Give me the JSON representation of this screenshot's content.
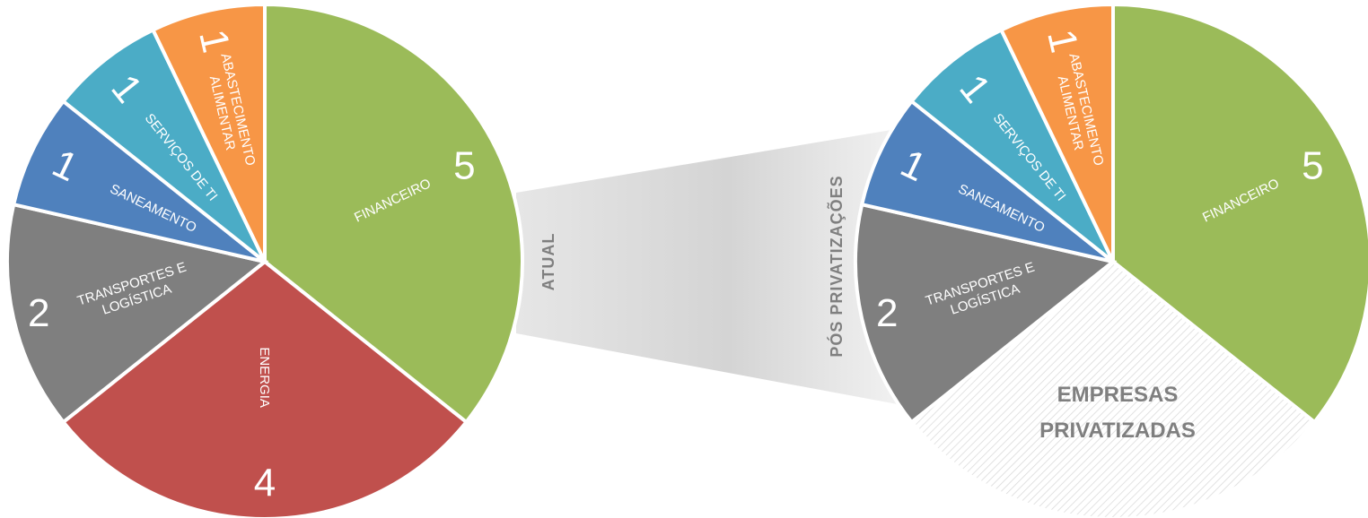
{
  "colors": {
    "financeiro": "#9bbb59",
    "energia": "#c0504d",
    "transportes": "#7f7f7f",
    "saneamento": "#4f81bd",
    "servicos_ti": "#4bacc6",
    "abastecimento": "#f79646",
    "privatizadas_hatch": "#d9d9d9",
    "band": "#d9d9d9",
    "band_label": "#7f7f7f"
  },
  "band": {
    "left_label": "ATUAL",
    "right_label": "PÓS PRIVATIZAÇÕES"
  },
  "privatized_label": {
    "line1": "EMPRESAS",
    "line2": "PRIVATIZADAS"
  },
  "chart_data": [
    {
      "type": "pie",
      "name_shown": "ATUAL",
      "slices": [
        {
          "key": "financeiro",
          "label": [
            "FINANCEIRO"
          ],
          "value": 5,
          "value_label": "5"
        },
        {
          "key": "energia",
          "label": [
            "ENERGIA"
          ],
          "value": 4,
          "value_label": "4"
        },
        {
          "key": "transportes",
          "label": [
            "TRANSPORTES E",
            "LOGÍSTICA"
          ],
          "value": 2,
          "value_label": "2"
        },
        {
          "key": "saneamento",
          "label": [
            "SANEAMENTO"
          ],
          "value": 1,
          "value_label": "1"
        },
        {
          "key": "servicos_ti",
          "label": [
            "SERVIÇOS DE TI"
          ],
          "value": 1,
          "value_label": "1"
        },
        {
          "key": "abastecimento",
          "label": [
            "ABASTECIMENTO",
            "ALIMENTAR"
          ],
          "value": 1,
          "value_label": "1"
        }
      ]
    },
    {
      "type": "pie",
      "name_shown": "PÓS PRIVATIZAÇÕES",
      "slices": [
        {
          "key": "financeiro",
          "label": [
            "FINANCEIRO"
          ],
          "value": 5,
          "value_label": "5"
        },
        {
          "key": "privatizadas",
          "label": [],
          "value": 4,
          "value_label": ""
        },
        {
          "key": "transportes",
          "label": [
            "TRANSPORTES E",
            "LOGÍSTICA"
          ],
          "value": 2,
          "value_label": "2"
        },
        {
          "key": "saneamento",
          "label": [
            "SANEAMENTO"
          ],
          "value": 1,
          "value_label": "1"
        },
        {
          "key": "servicos_ti",
          "label": [
            "SERVIÇOS DE TI"
          ],
          "value": 1,
          "value_label": "1"
        },
        {
          "key": "abastecimento",
          "label": [
            "ABASTECIMENTO",
            "ALIMENTAR"
          ],
          "value": 1,
          "value_label": "1"
        }
      ]
    }
  ]
}
